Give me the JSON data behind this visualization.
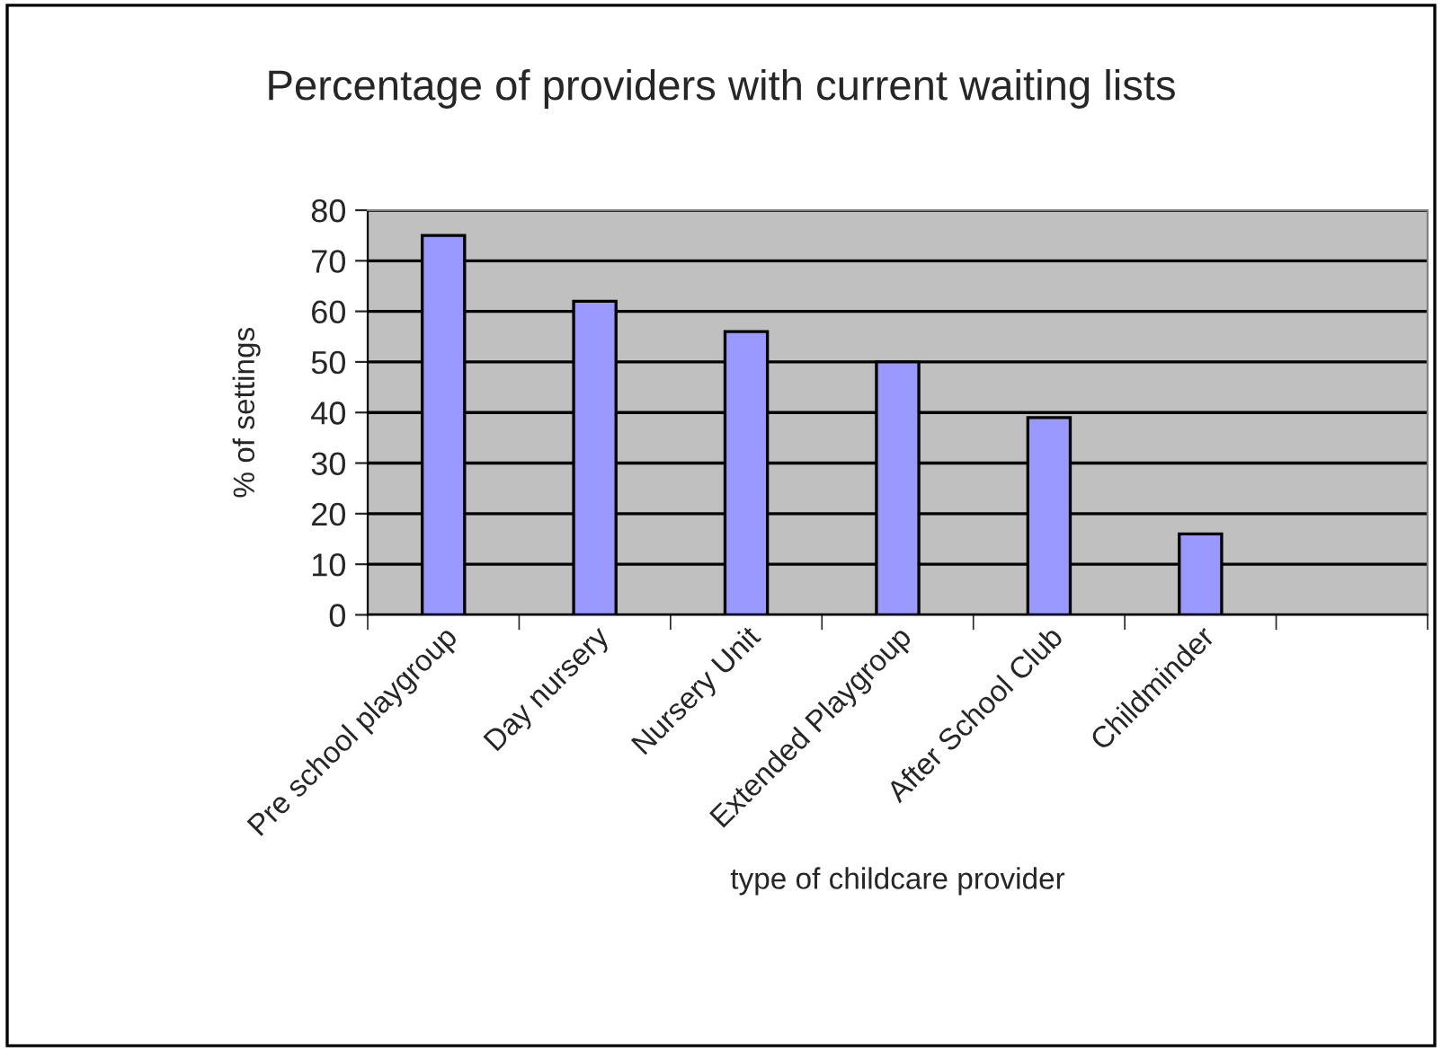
{
  "chart_data": {
    "type": "bar",
    "title": "Percentage of providers with current waiting lists",
    "categories": [
      "Pre school playgroup",
      "Day nursery",
      "Nursery Unit",
      "Extended Playgroup",
      "After School Club",
      "Childminder",
      null
    ],
    "values": [
      75,
      62,
      56,
      50,
      39,
      16,
      null
    ],
    "color": "#9999ff",
    "xlabel": "type of childcare provider",
    "ylabel": "% of settings",
    "ylim": [
      0,
      80
    ],
    "yticks": [
      0,
      10,
      20,
      30,
      40,
      50,
      60,
      70,
      80
    ],
    "grid": "y",
    "legend": false
  }
}
